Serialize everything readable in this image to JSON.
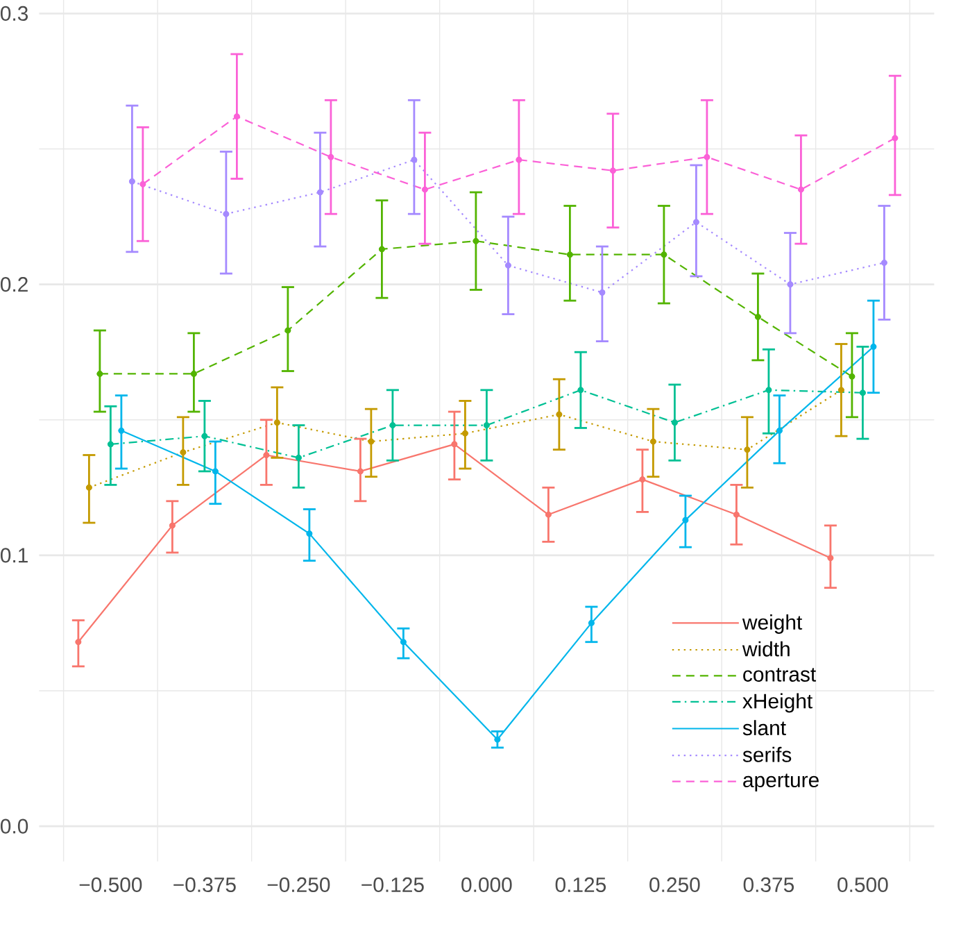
{
  "chart_data": {
    "type": "line",
    "marker": "circle",
    "grid": true,
    "legend": "bottom right",
    "xlim": [
      -0.595,
      0.595
    ],
    "ylim": [
      -0.013,
      0.314
    ],
    "xticks": [
      {
        "value": -0.5,
        "label": "−0.500"
      },
      {
        "value": -0.375,
        "label": "−0.375"
      },
      {
        "value": -0.25,
        "label": "−0.250"
      },
      {
        "value": -0.125,
        "label": "−0.125"
      },
      {
        "value": 0,
        "label": "0.000"
      },
      {
        "value": 0.125,
        "label": "0.125"
      },
      {
        "value": 0.25,
        "label": "0.250"
      },
      {
        "value": 0.375,
        "label": "0.375"
      },
      {
        "value": 0.5,
        "label": "0.500"
      }
    ],
    "yticks": [
      {
        "value": 0,
        "label": "0.0"
      },
      {
        "value": 0.1,
        "label": "0.1"
      },
      {
        "value": 0.2,
        "label": "0.2"
      },
      {
        "value": 0.3,
        "label": "0.3"
      }
    ],
    "series": [
      {
        "name": "weight",
        "color": "#F8766D",
        "line_style": "solid",
        "x": [
          -0.5429,
          -0.4179,
          -0.2929,
          -0.1679,
          -0.0429,
          0.0821,
          0.2071,
          0.3321,
          0.4571
        ],
        "values": [
          0.068,
          0.111,
          0.137,
          0.131,
          0.141,
          0.115,
          0.128,
          0.115,
          0.099
        ],
        "errors": [
          [
            0.059,
            0.076
          ],
          [
            0.101,
            0.12
          ],
          [
            0.126,
            0.15
          ],
          [
            0.12,
            0.143
          ],
          [
            0.128,
            0.153
          ],
          [
            0.105,
            0.125
          ],
          [
            0.116,
            0.139
          ],
          [
            0.104,
            0.126
          ],
          [
            0.088,
            0.111
          ]
        ]
      },
      {
        "name": "width",
        "color": "#C49A00",
        "line_style": "dotted",
        "x": [
          -0.5286,
          -0.4036,
          -0.2786,
          -0.1536,
          -0.0286,
          0.0964,
          0.2214,
          0.3464,
          0.4714
        ],
        "values": [
          0.125,
          0.138,
          0.149,
          0.142,
          0.145,
          0.152,
          0.142,
          0.139,
          0.161
        ],
        "errors": [
          [
            0.112,
            0.137
          ],
          [
            0.126,
            0.151
          ],
          [
            0.136,
            0.162
          ],
          [
            0.129,
            0.154
          ],
          [
            0.132,
            0.157
          ],
          [
            0.139,
            0.165
          ],
          [
            0.129,
            0.154
          ],
          [
            0.125,
            0.151
          ],
          [
            0.144,
            0.178
          ]
        ]
      },
      {
        "name": "contrast",
        "color": "#53B400",
        "line_style": "dashed",
        "x": [
          -0.5143,
          -0.3893,
          -0.2643,
          -0.1393,
          -0.0143,
          0.1107,
          0.2357,
          0.3607,
          0.4857
        ],
        "values": [
          0.167,
          0.167,
          0.183,
          0.213,
          0.216,
          0.211,
          0.211,
          0.188,
          0.166
        ],
        "errors": [
          [
            0.153,
            0.183
          ],
          [
            0.153,
            0.182
          ],
          [
            0.168,
            0.199
          ],
          [
            0.195,
            0.231
          ],
          [
            0.198,
            0.234
          ],
          [
            0.194,
            0.229
          ],
          [
            0.193,
            0.229
          ],
          [
            0.172,
            0.204
          ],
          [
            0.151,
            0.182
          ]
        ]
      },
      {
        "name": "xHeight",
        "color": "#00C094",
        "line_style": "dashdot",
        "x": [
          -0.5,
          -0.375,
          -0.25,
          -0.125,
          0,
          0.125,
          0.25,
          0.375,
          0.5
        ],
        "values": [
          0.141,
          0.144,
          0.136,
          0.148,
          0.148,
          0.161,
          0.149,
          0.161,
          0.16
        ],
        "errors": [
          [
            0.126,
            0.155
          ],
          [
            0.131,
            0.157
          ],
          [
            0.125,
            0.148
          ],
          [
            0.135,
            0.161
          ],
          [
            0.135,
            0.161
          ],
          [
            0.147,
            0.175
          ],
          [
            0.135,
            0.163
          ],
          [
            0.145,
            0.176
          ],
          [
            0.143,
            0.177
          ]
        ]
      },
      {
        "name": "slant",
        "color": "#00B6EB",
        "line_style": "solid",
        "x": [
          -0.4857,
          -0.3607,
          -0.2357,
          -0.1107,
          0.0143,
          0.1393,
          0.2643,
          0.3893,
          0.5143
        ],
        "values": [
          0.146,
          0.131,
          0.108,
          0.068,
          0.032,
          0.075,
          0.113,
          0.146,
          0.177
        ],
        "errors": [
          [
            0.132,
            0.159
          ],
          [
            0.119,
            0.142
          ],
          [
            0.098,
            0.117
          ],
          [
            0.062,
            0.073
          ],
          [
            0.029,
            0.035
          ],
          [
            0.068,
            0.081
          ],
          [
            0.103,
            0.122
          ],
          [
            0.134,
            0.159
          ],
          [
            0.16,
            0.194
          ]
        ]
      },
      {
        "name": "serifs",
        "color": "#A58AFF",
        "line_style": "dotted",
        "x": [
          -0.4714,
          -0.3464,
          -0.2214,
          -0.0964,
          0.0286,
          0.1536,
          0.2786,
          0.4036,
          0.5286
        ],
        "values": [
          0.238,
          0.226,
          0.234,
          0.246,
          0.207,
          0.197,
          0.223,
          0.2,
          0.208
        ],
        "errors": [
          [
            0.212,
            0.266
          ],
          [
            0.204,
            0.249
          ],
          [
            0.214,
            0.256
          ],
          [
            0.226,
            0.268
          ],
          [
            0.189,
            0.225
          ],
          [
            0.179,
            0.214
          ],
          [
            0.203,
            0.244
          ],
          [
            0.182,
            0.219
          ],
          [
            0.187,
            0.229
          ]
        ]
      },
      {
        "name": "aperture",
        "color": "#FB61D7",
        "line_style": "dashed",
        "x": [
          -0.4571,
          -0.3321,
          -0.2071,
          -0.0821,
          0.0429,
          0.1679,
          0.2929,
          0.4179,
          0.5429
        ],
        "values": [
          0.237,
          0.262,
          0.247,
          0.235,
          0.246,
          0.242,
          0.247,
          0.235,
          0.254
        ],
        "errors": [
          [
            0.216,
            0.258
          ],
          [
            0.239,
            0.285
          ],
          [
            0.226,
            0.268
          ],
          [
            0.215,
            0.256
          ],
          [
            0.226,
            0.268
          ],
          [
            0.221,
            0.263
          ],
          [
            0.226,
            0.268
          ],
          [
            0.215,
            0.255
          ],
          [
            0.233,
            0.277
          ]
        ]
      }
    ]
  }
}
